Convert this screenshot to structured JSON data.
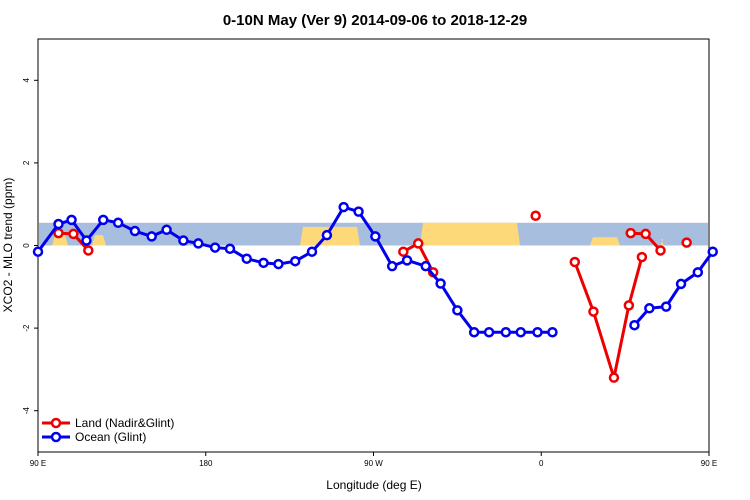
{
  "chart_data": {
    "type": "line",
    "title": "0-10N May (Ver 9)   2014-09-06 to 2018-12-29",
    "xlabel": "Longitude (deg E)",
    "ylabel": "XCO2 - MLO trend (ppm)",
    "xlim": [
      90,
      450
    ],
    "ylim": [
      -5,
      5
    ],
    "x_ticks": [
      {
        "value": 90,
        "label": "90 E"
      },
      {
        "value": 180,
        "label": "180"
      },
      {
        "value": 270,
        "label": "90 W"
      },
      {
        "value": 360,
        "label": "0"
      },
      {
        "value": 450,
        "label": "90 E"
      },
      {
        "value": 540,
        "label": "180"
      }
    ],
    "y_ticks": [
      -4,
      -2,
      0,
      2,
      4
    ],
    "map_band": {
      "ymin": 0,
      "ymax": 0.55,
      "ocean_color": "#a8bedf",
      "land_color": "#fdd97a"
    },
    "series": [
      {
        "name": "Land (Nadir&Glint)",
        "color": "#ee0000",
        "segments": [
          {
            "x": [
              101,
              109,
              117
            ],
            "y": [
              0.3,
              0.28,
              -0.12
            ]
          },
          {
            "x": [
              286,
              294,
              302
            ],
            "y": [
              -0.15,
              0.05,
              -0.65
            ]
          },
          {
            "x": [
              408,
              416,
              424
            ],
            "y": [
              0.3,
              0.28,
              -0.12
            ]
          }
        ],
        "points": [
          {
            "x": 357,
            "y": 0.72
          },
          {
            "x": 438,
            "y": 0.07
          }
        ],
        "v_segments": [
          {
            "x": [
              378,
              388,
              399,
              407,
              414
            ],
            "y": [
              -0.4,
              -1.6,
              -3.2,
              -1.45,
              -0.28
            ]
          }
        ]
      },
      {
        "name": "Ocean (Glint)",
        "color": "#0000ee",
        "segments": [
          {
            "x": [
              90,
              101,
              108,
              116,
              125,
              133,
              142,
              151,
              159,
              168,
              176,
              185,
              193,
              202,
              211,
              219,
              228,
              237,
              245,
              254,
              262,
              271,
              280,
              288,
              298,
              306,
              315,
              324,
              332,
              341,
              349,
              358,
              366
            ],
            "y": [
              -0.15,
              0.52,
              0.62,
              0.12,
              0.62,
              0.55,
              0.35,
              0.22,
              0.38,
              0.12,
              0.05,
              -0.05,
              -0.08,
              -0.32,
              -0.42,
              -0.45,
              -0.38,
              -0.15,
              0.25,
              0.93,
              0.82,
              0.22,
              -0.5,
              -0.36,
              -0.5,
              -0.92,
              -1.57,
              -2.1,
              -2.1,
              -2.1,
              -2.1,
              -2.1,
              -2.1
            ]
          },
          {
            "x": [
              410,
              418,
              427,
              435,
              444,
              452
            ],
            "y": [
              -1.93,
              -1.52,
              -1.48,
              -0.93,
              -0.65,
              -0.15
            ]
          }
        ]
      }
    ],
    "legend": {
      "placement": "bottom-left",
      "entries": [
        "Land (Nadir&Glint)",
        "Ocean (Glint)"
      ]
    }
  }
}
